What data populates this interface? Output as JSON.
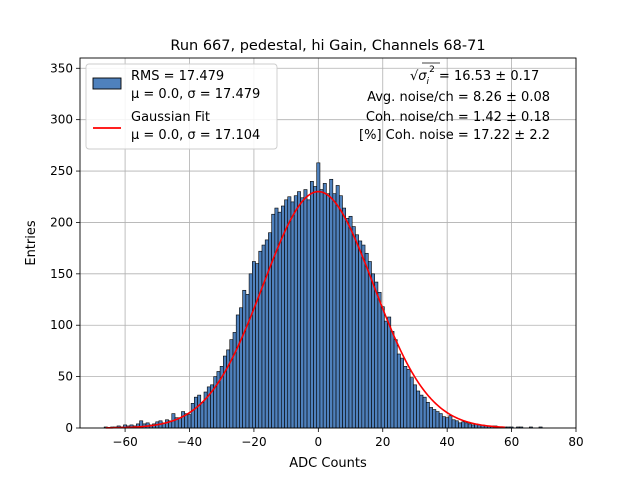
{
  "chart_data": {
    "type": "bar",
    "title": "Run 667, pedestal, hi Gain, Channels 68-71",
    "xlabel": "ADC Counts",
    "ylabel": "Entries",
    "xlim": [
      -74,
      80
    ],
    "ylim": [
      0,
      360
    ],
    "xticks": [
      "−60",
      "−40",
      "−20",
      "0",
      "20",
      "40",
      "60",
      "80"
    ],
    "xtick_values": [
      -60,
      -40,
      -20,
      0,
      20,
      40,
      60,
      80
    ],
    "yticks": [
      "0",
      "50",
      "100",
      "150",
      "200",
      "250",
      "300",
      "350"
    ],
    "ytick_values": [
      0,
      50,
      100,
      150,
      200,
      250,
      300,
      350
    ],
    "grid": true,
    "legend_position": "top-left",
    "bin_width": 1,
    "histogram": {
      "name": "RMS = 17.479",
      "subname": "μ = 0.0, σ = 17.479",
      "color": "#4f81bd",
      "edge_color": "#000000",
      "bin_centers": [
        -66,
        -65,
        -64,
        -63,
        -62,
        -61,
        -60,
        -59,
        -58,
        -57,
        -56,
        -55,
        -54,
        -53,
        -52,
        -51,
        -50,
        -49,
        -48,
        -47,
        -46,
        -45,
        -44,
        -43,
        -42,
        -41,
        -40,
        -39,
        -38,
        -37,
        -36,
        -35,
        -34,
        -33,
        -32,
        -31,
        -30,
        -29,
        -28,
        -27,
        -26,
        -25,
        -24,
        -23,
        -22,
        -21,
        -20,
        -19,
        -18,
        -17,
        -16,
        -15,
        -14,
        -13,
        -12,
        -11,
        -10,
        -9,
        -8,
        -7,
        -6,
        -5,
        -4,
        -3,
        -2,
        -1,
        0,
        1,
        2,
        3,
        4,
        5,
        6,
        7,
        8,
        9,
        10,
        11,
        12,
        13,
        14,
        15,
        16,
        17,
        18,
        19,
        20,
        21,
        22,
        23,
        24,
        25,
        26,
        27,
        28,
        29,
        30,
        31,
        32,
        33,
        34,
        35,
        36,
        37,
        38,
        39,
        40,
        41,
        42,
        43,
        44,
        45,
        46,
        47,
        48,
        49,
        50,
        51,
        52,
        53,
        54,
        55,
        56,
        57,
        58,
        59,
        60,
        61,
        62,
        63,
        64,
        65,
        66,
        67,
        68,
        69,
        70,
        71,
        72,
        73
      ],
      "counts": [
        1,
        0,
        1,
        1,
        2,
        1,
        3,
        2,
        3,
        2,
        4,
        7,
        4,
        5,
        3,
        4,
        6,
        7,
        5,
        8,
        7,
        14,
        10,
        10,
        16,
        14,
        13,
        24,
        30,
        32,
        25,
        35,
        40,
        42,
        50,
        55,
        60,
        70,
        76,
        86,
        93,
        110,
        117,
        134,
        130,
        150,
        162,
        160,
        172,
        178,
        183,
        190,
        208,
        214,
        210,
        216,
        222,
        225,
        220,
        226,
        230,
        224,
        232,
        222,
        240,
        235,
        258,
        232,
        238,
        228,
        242,
        228,
        236,
        226,
        214,
        204,
        206,
        196,
        188,
        182,
        178,
        170,
        162,
        150,
        142,
        132,
        118,
        104,
        108,
        94,
        86,
        72,
        68,
        60,
        57,
        49,
        42,
        36,
        32,
        30,
        25,
        20,
        18,
        16,
        14,
        11,
        10,
        12,
        8,
        7,
        5,
        6,
        5,
        4,
        3,
        4,
        3,
        3,
        2,
        2,
        2,
        2,
        1,
        1,
        1,
        1,
        1,
        0,
        1,
        1,
        0,
        0,
        1,
        0,
        0,
        1
      ]
    },
    "fit": {
      "name": "Gaussian Fit",
      "subname": "μ = 0.0, σ = 17.104",
      "color": "#ff0000",
      "x_range": [
        -66,
        58
      ],
      "mu": 0.0,
      "sigma": 17.104,
      "amplitude": 230
    },
    "annotations": {
      "sqrt_prefix": "√",
      "sigma_sym": "σ",
      "sub": "i",
      "sup": "2",
      "line1_rest": " = 16.53 ± 0.17",
      "line2": "Avg. noise/ch = 8.26 ± 0.08",
      "line3": "Coh. noise/ch = 1.42 ± 0.18",
      "line4": "[%] Coh. noise = 17.22 ± 2.2"
    }
  }
}
